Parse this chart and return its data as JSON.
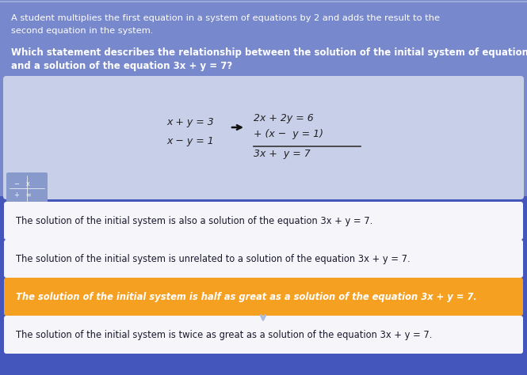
{
  "bg_main_color": "#4455bb",
  "bg_top_color": "#7788cc",
  "bg_mid_color": "#c8cfe8",
  "orange_box_color": "#f5a020",
  "white_box_color": "#f5f5fa",
  "title_text1": "A student multiplies the first equation in a system of equations by 2 and adds the result to the",
  "title_text2": "second equation in the system.",
  "question_text1": "Which statement describes the relationship between the solution of the initial system of equations",
  "question_text2": "and a solution of the equation 3x + y = 7?",
  "eq_left1": "x + y = 3",
  "eq_left2": "x − y = 1",
  "eq_right1": "2x + 2y = 6",
  "eq_right2": "+ (x −  y = 1)",
  "eq_right3": "3x +  y = 7",
  "answer1": "The solution of the initial system is also a solution of the equation 3x + y = 7.",
  "answer2": "The solution of the initial system is unrelated to a solution of the equation 3x + y = 7.",
  "answer3": "The solution of the initial system is half as great as a solution of the equation 3x + y = 7.",
  "answer4": "The solution of the initial system is twice as great as a solution of the equation 3x + y = 7.",
  "selected_answer_index": 2,
  "text_white": "#ffffff",
  "text_dark": "#1a1a2e",
  "text_orange_selected": "#ffffff"
}
